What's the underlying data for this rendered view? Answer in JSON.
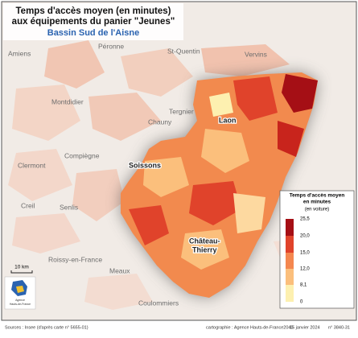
{
  "title": [
    "Temps d'accès moyen (en minutes)",
    "aux équipements du panier \"Jeunes\""
  ],
  "subtitle": "Bassin Sud de l'Aisne",
  "cities": [
    "Amiens",
    "Péronne",
    "St-Quentin",
    "Vervins",
    "Montdidier",
    "Tergnier",
    "Chauny",
    "Laon",
    "Compiègne",
    "Clermont",
    "Soissons",
    "Creil",
    "Senlis",
    "Roissy-en-France",
    "Meaux",
    "Coulommiers"
  ],
  "chateau_thierry": [
    "Château-",
    "Thierry"
  ],
  "legend": {
    "title": [
      "Temps d'accès moyen",
      "en minutes"
    ],
    "note": "(en voiture)",
    "ticks": [
      "25,5",
      "20,0",
      "15,0",
      "12,0",
      "8,1",
      "0"
    ]
  },
  "scale": "10 km",
  "logo": [
    "Agence",
    "Hauts-de-France"
  ],
  "sources": "Sources : Insee (d'après carte n° 5655-01)",
  "credits": "cartographie : Agence Hauts-de-France2040",
  "date": "15 janvier 2024",
  "number": "n° 3840-31"
}
